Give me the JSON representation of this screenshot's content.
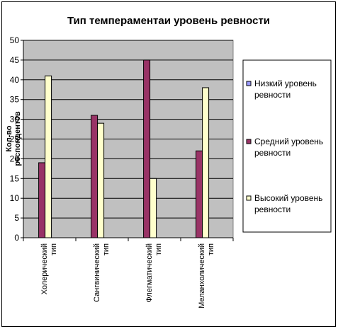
{
  "chart_data": {
    "type": "bar",
    "title": "Тип темпераментаи уровень ревности",
    "ylabel": "Кол-во респондентов",
    "xlabel": "",
    "ylim": [
      0,
      50
    ],
    "yticks": [
      "0",
      "5",
      "10",
      "15",
      "20",
      "25",
      "30",
      "35",
      "40",
      "45",
      "50"
    ],
    "categories": [
      [
        "Холерический",
        "тип"
      ],
      [
        "Сангвинический",
        "тип"
      ],
      [
        "Флегматический",
        "тип"
      ],
      [
        "Меланхолический",
        "тип"
      ]
    ],
    "series": [
      {
        "name": [
          "Низкий уровень",
          "ревности"
        ],
        "values": [
          0,
          0,
          0,
          0
        ],
        "color": "#9999ff"
      },
      {
        "name": [
          "Средний уровень",
          "ревности"
        ],
        "values": [
          19,
          31,
          45,
          22
        ],
        "color": "#993366"
      },
      {
        "name": [
          "Высокий уровень",
          "ревности"
        ],
        "values": [
          41,
          29,
          15,
          38
        ],
        "color": "#ffffcc"
      }
    ],
    "plot_background": "#c0c0c0",
    "grid": true,
    "legend_position": "right"
  }
}
